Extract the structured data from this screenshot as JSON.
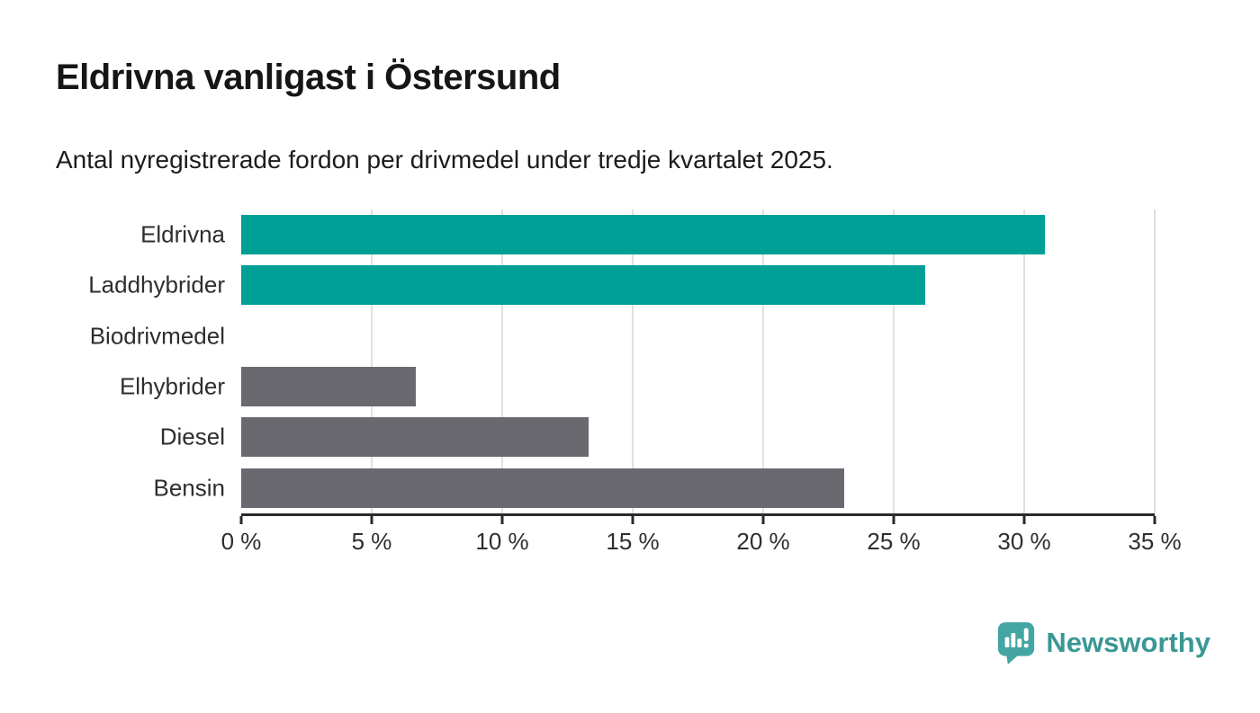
{
  "header": {
    "title": "Eldrivna vanligast i Östersund",
    "subtitle": "Antal nyregistrerade fordon per drivmedel under tredje kvartalet 2025."
  },
  "chart_data": {
    "type": "bar",
    "orientation": "horizontal",
    "title": "Eldrivna vanligast i Östersund",
    "subtitle": "Antal nyregistrerade fordon per drivmedel under tredje kvartalet 2025.",
    "categories": [
      "Eldrivna",
      "Laddhybrider",
      "Biodrivmedel",
      "Elhybrider",
      "Diesel",
      "Bensin"
    ],
    "values": [
      30.8,
      26.2,
      0,
      6.7,
      13.3,
      23.1
    ],
    "unit": "%",
    "bar_colors": [
      "#00a096",
      "#00a096",
      "#69696f",
      "#69696f",
      "#69696f",
      "#69696f"
    ],
    "xlabel": "",
    "ylabel": "",
    "xlim": [
      0,
      35
    ],
    "tick_step": 5,
    "tick_labels": [
      "0 %",
      "5 %",
      "10 %",
      "15 %",
      "20 %",
      "25 %",
      "30 %",
      "35 %"
    ],
    "grid": "vertical-only",
    "legend": "none"
  },
  "colors": {
    "highlight_bar": "#00a096",
    "default_bar": "#69696f",
    "gridline": "#e0e0e0",
    "axis": "#2b2b2b",
    "text": "#2e2e2e"
  },
  "branding": {
    "logo_text": "Newsworthy",
    "logo_icon": "speech-bubble-bar-chart-icon",
    "icon_color": "#45a5a2",
    "text_color": "#3a9894"
  }
}
